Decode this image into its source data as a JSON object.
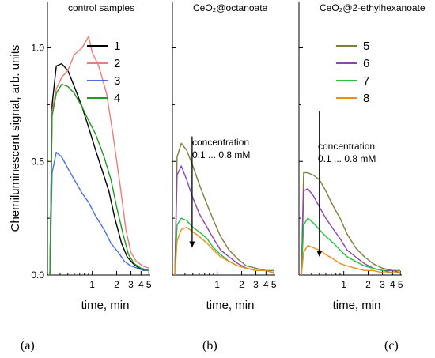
{
  "ylabel": "Chemiluminescent signal, arb. units",
  "chart_data": [
    {
      "type": "line",
      "panel_label": "(a)",
      "title": "control samples",
      "xlabel": "time, min",
      "x_scale": "log",
      "xlim": [
        0.28,
        5.2
      ],
      "ylim": [
        0,
        1.2
      ],
      "x_ticks": [
        {
          "v": 1,
          "label": "1"
        },
        {
          "v": 2,
          "label": "2"
        },
        {
          "v": 3,
          "label": "3"
        },
        {
          "v": 4,
          "label": "4"
        },
        {
          "v": 5,
          "label": "5"
        }
      ],
      "y_ticks": [
        {
          "v": 0,
          "label": "0.0"
        },
        {
          "v": 0.5,
          "label": "0.5"
        },
        {
          "v": 1.0,
          "label": "1.0"
        }
      ],
      "legend": "top-right",
      "series": [
        {
          "name": "1",
          "color": "#000000",
          "x": [
            0.3,
            0.32,
            0.36,
            0.42,
            0.5,
            0.6,
            0.75,
            0.9,
            1.1,
            1.3,
            1.6,
            1.9,
            2.3,
            2.7,
            3.2,
            3.8,
            4.5,
            5.0
          ],
          "y": [
            0,
            0.75,
            0.92,
            0.93,
            0.9,
            0.83,
            0.74,
            0.65,
            0.55,
            0.47,
            0.37,
            0.25,
            0.14,
            0.08,
            0.05,
            0.03,
            0.02,
            0.02
          ]
        },
        {
          "name": "2",
          "color": "#f07a78",
          "x": [
            0.3,
            0.32,
            0.36,
            0.42,
            0.5,
            0.6,
            0.75,
            0.9,
            1.0,
            1.2,
            1.5,
            1.8,
            2.2,
            2.6,
            3.0,
            3.5,
            4.2,
            5.0
          ],
          "y": [
            0,
            0.72,
            0.82,
            0.87,
            0.9,
            0.97,
            1.0,
            1.05,
            0.98,
            0.92,
            0.8,
            0.62,
            0.4,
            0.2,
            0.1,
            0.06,
            0.04,
            0.03
          ]
        },
        {
          "name": "3",
          "color": "#4a6fe0",
          "x": [
            0.3,
            0.32,
            0.36,
            0.42,
            0.5,
            0.6,
            0.75,
            0.9,
            1.1,
            1.4,
            1.7,
            2.1,
            2.5,
            3.0,
            3.6,
            4.3,
            5.0
          ],
          "y": [
            0,
            0.45,
            0.54,
            0.52,
            0.47,
            0.42,
            0.36,
            0.32,
            0.26,
            0.2,
            0.14,
            0.1,
            0.06,
            0.04,
            0.03,
            0.02,
            0.02
          ]
        },
        {
          "name": "4",
          "color": "#1e9e1e",
          "x": [
            0.3,
            0.32,
            0.36,
            0.42,
            0.5,
            0.6,
            0.75,
            0.9,
            1.1,
            1.4,
            1.7,
            2.0,
            2.4,
            2.8,
            3.3,
            4.0,
            5.0
          ],
          "y": [
            0,
            0.7,
            0.8,
            0.84,
            0.83,
            0.8,
            0.74,
            0.68,
            0.62,
            0.52,
            0.42,
            0.3,
            0.18,
            0.09,
            0.05,
            0.03,
            0.02
          ]
        }
      ]
    },
    {
      "type": "line",
      "panel_label": "(b)",
      "title": "CeO₂@octanoate",
      "xlabel": "time, min",
      "x_scale": "log",
      "xlim": [
        0.28,
        5.2
      ],
      "ylim": [
        0,
        1.2
      ],
      "x_ticks": [
        {
          "v": 1,
          "label": "1"
        },
        {
          "v": 2,
          "label": "2"
        },
        {
          "v": 3,
          "label": "3"
        },
        {
          "v": 4,
          "label": "4"
        },
        {
          "v": 5,
          "label": "5"
        }
      ],
      "annotation": {
        "line1": "concentration",
        "line2": "0.1 ... 0.8 mM",
        "arrow_x": 0.49,
        "arrow_y_from": 0.61,
        "arrow_y_to": 0.12
      },
      "series": [
        {
          "name": "5",
          "color": "#7f7f3c",
          "x": [
            0.3,
            0.32,
            0.36,
            0.42,
            0.5,
            0.6,
            0.75,
            0.9,
            1.1,
            1.4,
            1.8,
            2.3,
            3.0,
            4.0,
            5.0
          ],
          "y": [
            0,
            0.52,
            0.58,
            0.55,
            0.48,
            0.4,
            0.31,
            0.24,
            0.17,
            0.11,
            0.07,
            0.04,
            0.03,
            0.02,
            0.02
          ]
        },
        {
          "name": "6",
          "color": "#8e44ad",
          "x": [
            0.3,
            0.32,
            0.36,
            0.42,
            0.5,
            0.6,
            0.75,
            0.9,
            1.1,
            1.4,
            1.8,
            2.3,
            3.0,
            4.0,
            5.0
          ],
          "y": [
            0,
            0.44,
            0.48,
            0.42,
            0.34,
            0.27,
            0.21,
            0.16,
            0.11,
            0.08,
            0.05,
            0.03,
            0.02,
            0.02,
            0.01
          ]
        },
        {
          "name": "7",
          "color": "#1fc23a",
          "x": [
            0.3,
            0.32,
            0.36,
            0.42,
            0.5,
            0.6,
            0.75,
            0.9,
            1.1,
            1.4,
            1.8,
            2.3,
            3.0,
            4.0,
            5.0
          ],
          "y": [
            0,
            0.22,
            0.25,
            0.24,
            0.21,
            0.19,
            0.16,
            0.12,
            0.09,
            0.06,
            0.04,
            0.03,
            0.02,
            0.02,
            0.01
          ]
        },
        {
          "name": "8",
          "color": "#f08c1a",
          "x": [
            0.3,
            0.32,
            0.36,
            0.42,
            0.5,
            0.6,
            0.75,
            0.9,
            1.1,
            1.4,
            1.8,
            2.3,
            3.0,
            4.0,
            5.0
          ],
          "y": [
            0,
            0.15,
            0.2,
            0.21,
            0.19,
            0.17,
            0.14,
            0.11,
            0.08,
            0.06,
            0.04,
            0.03,
            0.02,
            0.02,
            0.01
          ]
        }
      ]
    },
    {
      "type": "line",
      "panel_label": "(c)",
      "title": "CeO₂@2-ethylhexanoate",
      "xlabel": "time, min",
      "x_scale": "log",
      "xlim": [
        0.28,
        5.2
      ],
      "ylim": [
        0,
        1.2
      ],
      "x_ticks": [
        {
          "v": 1,
          "label": "1"
        },
        {
          "v": 2,
          "label": "2"
        },
        {
          "v": 3,
          "label": "3"
        },
        {
          "v": 4,
          "label": "4"
        },
        {
          "v": 5,
          "label": "5"
        }
      ],
      "legend": "top-right",
      "annotation": {
        "line1": "concentration",
        "line2": "0.1 ... 0.8 mM",
        "arrow_x": 0.5,
        "arrow_y_from": 0.72,
        "arrow_y_to": 0.08
      },
      "series": [
        {
          "name": "5",
          "color": "#7f7f3c",
          "x": [
            0.3,
            0.32,
            0.36,
            0.42,
            0.5,
            0.6,
            0.75,
            0.9,
            1.1,
            1.4,
            1.8,
            2.3,
            3.0,
            4.0,
            5.0
          ],
          "y": [
            0,
            0.45,
            0.45,
            0.44,
            0.42,
            0.37,
            0.3,
            0.25,
            0.18,
            0.12,
            0.08,
            0.05,
            0.03,
            0.02,
            0.02
          ]
        },
        {
          "name": "6",
          "color": "#8e44ad",
          "x": [
            0.3,
            0.32,
            0.36,
            0.42,
            0.5,
            0.6,
            0.75,
            0.9,
            1.1,
            1.4,
            1.8,
            2.3,
            3.0,
            4.0,
            5.0
          ],
          "y": [
            0,
            0.37,
            0.38,
            0.35,
            0.3,
            0.25,
            0.2,
            0.16,
            0.11,
            0.08,
            0.05,
            0.03,
            0.02,
            0.02,
            0.01
          ]
        },
        {
          "name": "7",
          "color": "#1fc23a",
          "x": [
            0.3,
            0.32,
            0.36,
            0.42,
            0.5,
            0.6,
            0.75,
            0.9,
            1.1,
            1.4,
            1.8,
            2.3,
            3.0,
            4.0,
            5.0
          ],
          "y": [
            0,
            0.22,
            0.25,
            0.23,
            0.2,
            0.17,
            0.14,
            0.11,
            0.08,
            0.06,
            0.04,
            0.03,
            0.02,
            0.01,
            0.01
          ]
        },
        {
          "name": "8",
          "color": "#f08c1a",
          "x": [
            0.3,
            0.32,
            0.36,
            0.42,
            0.5,
            0.6,
            0.75,
            0.9,
            1.1,
            1.4,
            1.8,
            2.3,
            3.0,
            4.0,
            5.0
          ],
          "y": [
            0,
            0.1,
            0.13,
            0.12,
            0.11,
            0.09,
            0.07,
            0.05,
            0.04,
            0.03,
            0.02,
            0.02,
            0.01,
            0.01,
            0.01
          ]
        }
      ]
    }
  ]
}
